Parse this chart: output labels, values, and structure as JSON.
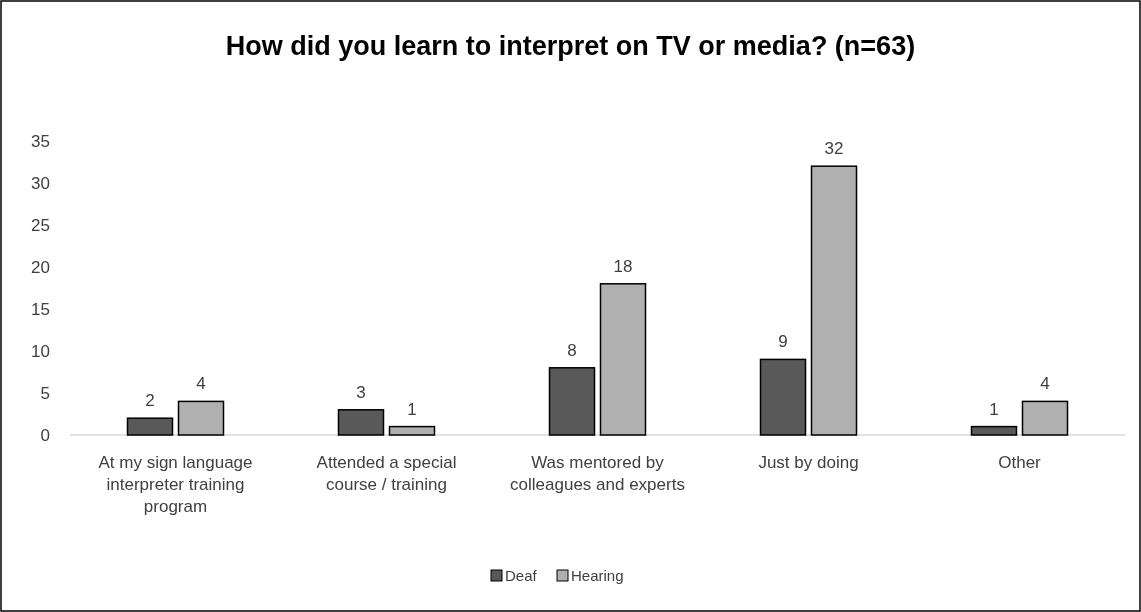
{
  "chart_data": {
    "type": "bar",
    "title": "How did you learn to interpret on TV or media? (n=63)",
    "categories": [
      "At my sign language interpreter training program",
      "Attended a special course / training",
      "Was mentored by colleagues and experts",
      "Just by doing",
      "Other"
    ],
    "series": [
      {
        "name": "Deaf",
        "color": "#595959",
        "values": [
          2,
          3,
          8,
          9,
          1
        ]
      },
      {
        "name": "Hearing",
        "color": "#b0b0b0",
        "values": [
          4,
          1,
          18,
          32,
          4
        ]
      }
    ],
    "ylim": [
      0,
      35
    ],
    "yticks": [
      0,
      5,
      10,
      15,
      20,
      25,
      30,
      35
    ],
    "grid": false,
    "legend": "bottom",
    "data_labels": true
  }
}
